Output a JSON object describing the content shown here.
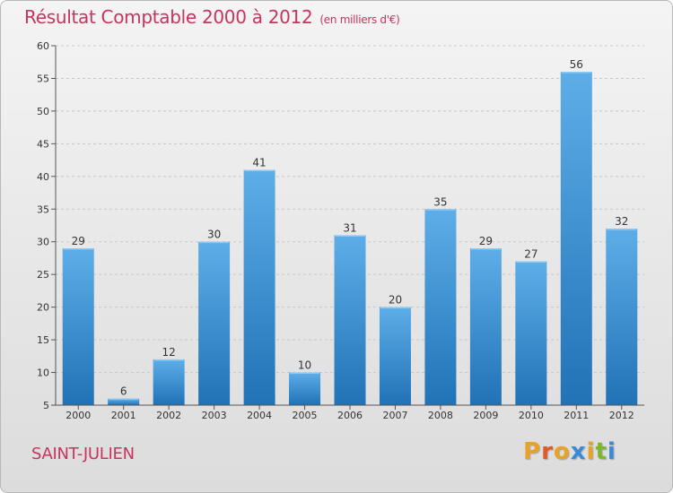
{
  "chart_data": {
    "type": "bar",
    "title": "Résultat Comptable 2000 à 2012",
    "subtitle": "(en milliers d'€)",
    "categories": [
      "2000",
      "2001",
      "2002",
      "2003",
      "2004",
      "2005",
      "2006",
      "2007",
      "2008",
      "2009",
      "2010",
      "2011",
      "2012"
    ],
    "values": [
      29,
      6,
      12,
      30,
      41,
      10,
      31,
      20,
      35,
      29,
      27,
      56,
      32
    ],
    "ylim": [
      5,
      60
    ],
    "yticks": [
      5,
      10,
      15,
      20,
      25,
      30,
      35,
      40,
      45,
      50,
      55,
      60
    ],
    "xlabel": "",
    "ylabel": "",
    "grid": true
  },
  "location": "SAINT-JULIEN",
  "logo": {
    "text": "Proxiti",
    "letters": [
      "P",
      "r",
      "o",
      "x",
      "i",
      "t",
      "i"
    ]
  },
  "colors": {
    "title": "#c8345b",
    "bar_top": "#5daee8",
    "bar_bottom": "#2172b6",
    "grid": "#c8c8c8",
    "logo": [
      "#e8a326",
      "#e05a2a",
      "#e8a326",
      "#3a8bd6",
      "#e8a326",
      "#7cb82f",
      "#3a8bd6"
    ]
  }
}
